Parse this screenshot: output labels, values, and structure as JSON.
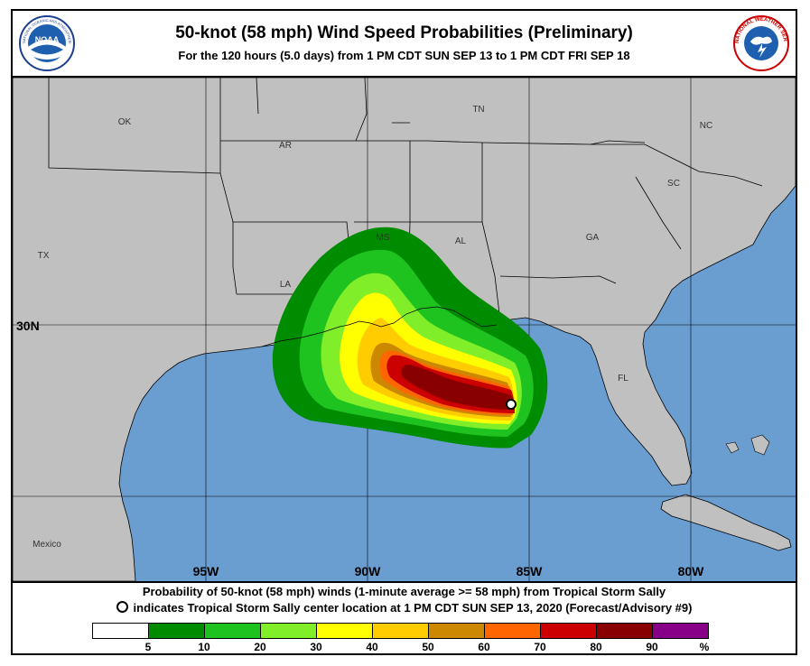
{
  "header": {
    "title": "50-knot (58 mph) Wind Speed Probabilities (Preliminary)",
    "subtitle": "For the 120 hours (5.0 days) from 1 PM CDT SUN SEP 13 to 1 PM CDT FRI SEP 18",
    "left_logo": "noaa-logo",
    "right_logo": "national-weather-service-logo",
    "left_logo_text": "NOAA",
    "left_logo_ring": "NATIONAL OCEANIC AND ATMOSPHERIC ADMINISTRATION · U.S. DEPARTMENT OF COMMERCE",
    "right_logo_ring": "NATIONAL WEATHER SERVICE"
  },
  "map": {
    "state_labels": [
      "OK",
      "AR",
      "TN",
      "NC",
      "SC",
      "MS",
      "AL",
      "GA",
      "TX",
      "LA",
      "FL",
      "Mexico"
    ],
    "lat_label": "30N",
    "lon_labels": [
      "95W",
      "90W",
      "85W",
      "80W"
    ],
    "colors": {
      "land": "#c0c0c0",
      "water": "#6a9ed0",
      "borders": "#000000",
      "grid": "#000000"
    }
  },
  "footer": {
    "caption_line1": "Probability of 50-knot (58 mph) winds (1-minute average >= 58 mph) from Tropical Storm Sally",
    "caption_line2": "indicates Tropical Storm Sally center location at 1 PM CDT SUN SEP 13, 2020 (Forecast/Advisory #9)"
  },
  "legend": {
    "labels": [
      "5",
      "10",
      "20",
      "30",
      "40",
      "50",
      "60",
      "70",
      "80",
      "90",
      "%"
    ],
    "colors": [
      "#ffffff",
      "#008c00",
      "#1fc31f",
      "#80ef2a",
      "#ffff00",
      "#ffcc00",
      "#cc8800",
      "#ff6600",
      "#cc0000",
      "#880000",
      "#880088"
    ]
  }
}
